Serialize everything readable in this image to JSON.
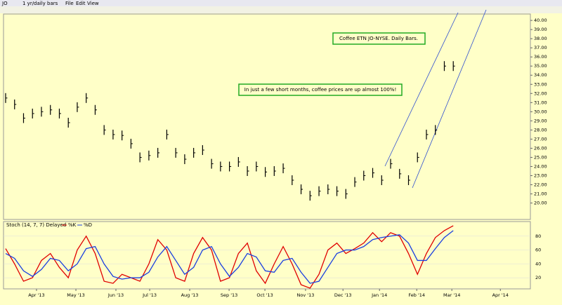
{
  "toolbar": {
    "symbol": "JO",
    "period": "1 yr/daily bars",
    "menus": [
      "File",
      "Edit",
      "View"
    ]
  },
  "chart_data": {
    "type": "bar",
    "annotations": [
      "Coffee ETN JO-NYSE.  Daily Bars.",
      "In just a few short months, coffee prices are up almost 100%!"
    ],
    "x": [
      0,
      1,
      2,
      3,
      4,
      5,
      6,
      7,
      8,
      9,
      10,
      11,
      12,
      13,
      14,
      15,
      16,
      17,
      18,
      19,
      20,
      21,
      22,
      23,
      24,
      25,
      26,
      27,
      28,
      29,
      30,
      31,
      32,
      33,
      34,
      35,
      36,
      37,
      38,
      39,
      40,
      41,
      42,
      43,
      44,
      45,
      46,
      47,
      48,
      49,
      50
    ],
    "xlim": [
      0,
      58.3
    ],
    "xticks": [
      {
        "value": 3.45,
        "label": "Apr '13"
      },
      {
        "value": 7.85,
        "label": "May '13"
      },
      {
        "value": 12.32,
        "label": "Jun '13"
      },
      {
        "value": 16.09,
        "label": "Jul '13"
      },
      {
        "value": 20.56,
        "label": "Aug '13"
      },
      {
        "value": 24.96,
        "label": "Sep '13"
      },
      {
        "value": 28.96,
        "label": "Oct '13"
      },
      {
        "value": 33.5,
        "label": "Nov '13"
      },
      {
        "value": 37.68,
        "label": "Dec '13"
      },
      {
        "value": 41.76,
        "label": "Jan '14"
      },
      {
        "value": 45.92,
        "label": "Feb '14"
      },
      {
        "value": 49.84,
        "label": "Mar '14"
      },
      {
        "value": 55.26,
        "label": "Apr '14"
      }
    ],
    "values": [
      31.5,
      30.8,
      29.3,
      29.8,
      30,
      30.2,
      29.8,
      28.8,
      30.5,
      31.5,
      30.2,
      28,
      27.5,
      27.4,
      26.5,
      25,
      25.2,
      25.5,
      27.5,
      25.5,
      24.8,
      25.5,
      25.8,
      24.3,
      24,
      24,
      24.5,
      23.5,
      24,
      23.4,
      23.5,
      23.8,
      22.5,
      21.5,
      20.8,
      21.3,
      21.5,
      21.3,
      21,
      22.3,
      23,
      23.3,
      22.5,
      24.3,
      23.2,
      22.5,
      25,
      27.5,
      28,
      35,
      35
    ],
    "color": "#000000",
    "ylim": [
      18.2,
      40.7
    ],
    "yticks": [
      {
        "value": 20,
        "label": "20.00"
      },
      {
        "value": 21,
        "label": "21.00"
      },
      {
        "value": 22,
        "label": "22.00"
      },
      {
        "value": 23,
        "label": "23.00"
      },
      {
        "value": 24,
        "label": "24.00"
      },
      {
        "value": 25,
        "label": "25.00"
      },
      {
        "value": 26,
        "label": "26.00"
      },
      {
        "value": 27,
        "label": "27.00"
      },
      {
        "value": 28,
        "label": "28.00"
      },
      {
        "value": 29,
        "label": "29.00"
      },
      {
        "value": 30,
        "label": "30.00"
      },
      {
        "value": 31,
        "label": "31.00"
      },
      {
        "value": 32,
        "label": "32.00"
      },
      {
        "value": 33,
        "label": "33.00"
      },
      {
        "value": 34,
        "label": "34.00"
      },
      {
        "value": 35,
        "label": "35.00"
      },
      {
        "value": 36,
        "label": "36.00"
      },
      {
        "value": 37,
        "label": "37.00"
      },
      {
        "value": 38,
        "label": "38.00"
      },
      {
        "value": 39,
        "label": "39.00"
      },
      {
        "value": 40,
        "label": "40.00"
      }
    ],
    "indicator": {
      "type": "line",
      "title": "Stoch (14, 7, 7) Delayed",
      "ylim": [
        4,
        100
      ],
      "yticks": [
        20,
        40,
        60,
        80
      ],
      "series": [
        {
          "name": "%K",
          "color": "#e00000",
          "values": [
            62,
            40,
            15,
            20,
            45,
            55,
            35,
            20,
            60,
            80,
            55,
            15,
            12,
            25,
            20,
            15,
            40,
            75,
            60,
            20,
            15,
            55,
            78,
            60,
            15,
            20,
            55,
            70,
            30,
            12,
            40,
            65,
            40,
            10,
            5,
            25,
            60,
            70,
            55,
            62,
            70,
            85,
            72,
            85,
            80,
            55,
            25,
            55,
            78,
            88,
            95
          ]
        },
        {
          "name": "%D",
          "color": "#1a3fe0",
          "values": [
            55,
            48,
            30,
            22,
            32,
            48,
            45,
            30,
            40,
            62,
            65,
            40,
            22,
            18,
            20,
            20,
            28,
            50,
            65,
            45,
            25,
            35,
            60,
            65,
            40,
            22,
            35,
            55,
            50,
            30,
            28,
            45,
            48,
            28,
            12,
            15,
            35,
            55,
            60,
            60,
            65,
            75,
            78,
            80,
            82,
            70,
            45,
            45,
            62,
            78,
            88
          ]
        }
      ]
    }
  }
}
